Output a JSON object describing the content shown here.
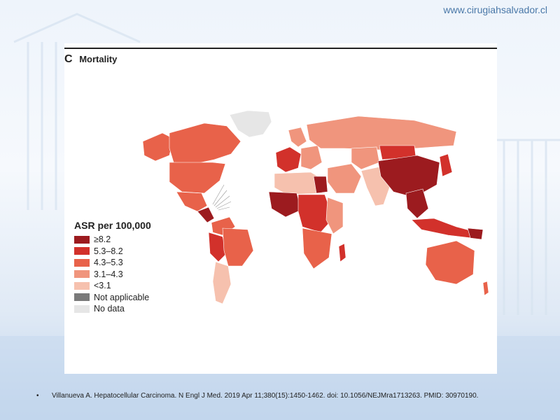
{
  "site_url": "www.cirugiahsalvador.cl",
  "figure": {
    "panel_letter": "C",
    "panel_title": "Mortality"
  },
  "legend": {
    "title": "ASR per 100,000",
    "items": [
      {
        "label": "≥8.2",
        "color": "#9c1b1f"
      },
      {
        "label": "5.3–8.2",
        "color": "#d2312b"
      },
      {
        "label": "4.3–5.3",
        "color": "#e8624a"
      },
      {
        "label": "3.1–4.3",
        "color": "#f0957d"
      },
      {
        "label": "<3.1",
        "color": "#f6c1ae"
      },
      {
        "label": "Not applicable",
        "color": "#7a7a7a"
      },
      {
        "label": "No data",
        "color": "#e6e6e6"
      }
    ]
  },
  "citation": {
    "bullet": "•",
    "text": "Villanueva A. Hepatocellular Carcinoma. N Engl J Med. 2019 Apr 11;380(15):1450-1462.  doi: 10.1056/NEJMra1713263.   PMID: 30970190."
  }
}
